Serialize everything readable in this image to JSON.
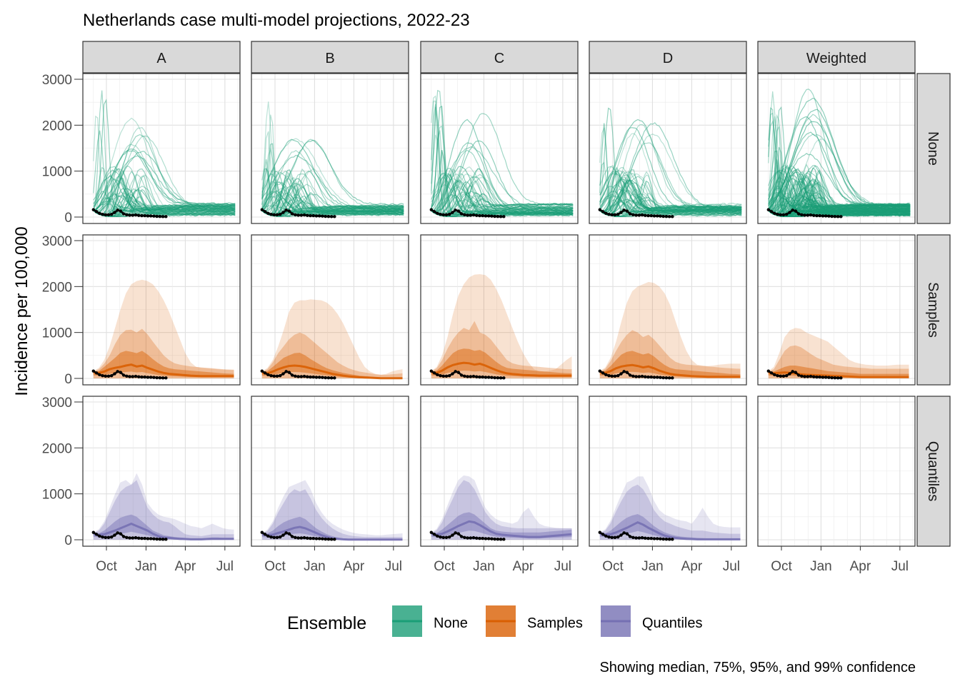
{
  "chart_data": {
    "type": "line",
    "title": "Netherlands case multi-model projections, 2022-23",
    "ylabel": "Incidence per 100,000",
    "xlabel": "",
    "ylim": [
      0,
      3000
    ],
    "yticks": [
      0,
      1000,
      2000,
      3000
    ],
    "xticks": [
      "Oct",
      "Jan",
      "Apr",
      "Jul"
    ],
    "columns": [
      "A",
      "B",
      "C",
      "D",
      "Weighted"
    ],
    "rows": [
      "None",
      "Samples",
      "Quantiles"
    ],
    "legend": {
      "title": "Ensemble",
      "position": "bottom",
      "items": [
        {
          "label": "None",
          "color": "#1b9e77"
        },
        {
          "label": "Samples",
          "color": "#d95f02"
        },
        {
          "label": "Quantiles",
          "color": "#7570b3"
        }
      ]
    },
    "caption": "Showing median, 75%, 95%, and 99% confidence",
    "colors": {
      "None": "#1b9e77",
      "Samples": "#d95f02",
      "Quantiles": "#7570b3",
      "observed": "#000000",
      "strip": "#d9d9d9"
    },
    "x_weeks": [
      0,
      3,
      6,
      9,
      12,
      15,
      18,
      21,
      24,
      27,
      30,
      33,
      36,
      39,
      42,
      45,
      48
    ],
    "observed": {
      "weeks": [
        0,
        1,
        2,
        3,
        4,
        5,
        6,
        7,
        8,
        9,
        10,
        11,
        12,
        13,
        14,
        15,
        16,
        17,
        18,
        19,
        20,
        21,
        22,
        23,
        24
      ],
      "values": [
        160,
        120,
        80,
        60,
        50,
        50,
        60,
        100,
        150,
        130,
        70,
        50,
        40,
        40,
        45,
        35,
        30,
        30,
        25,
        25,
        20,
        15,
        12,
        10,
        10
      ]
    },
    "samples_bands": {
      "A": {
        "q99": [
          160,
          230,
          400,
          700,
          1100,
          1500,
          1850,
          2050,
          2120,
          2150,
          2120,
          2050,
          1900,
          1700,
          1450,
          1150,
          850,
          550,
          350,
          250,
          230,
          220,
          210,
          200,
          190,
          185,
          180
        ],
        "q95": [
          150,
          200,
          320,
          500,
          750,
          950,
          1050,
          1060,
          1000,
          1080,
          960,
          800,
          650,
          500,
          400,
          330,
          300,
          280,
          260,
          250,
          240,
          230,
          220,
          210,
          200,
          195,
          190
        ],
        "q75": [
          140,
          160,
          250,
          350,
          450,
          560,
          600,
          580,
          550,
          600,
          520,
          420,
          330,
          260,
          220,
          200,
          190,
          180,
          170,
          160,
          150,
          140,
          130,
          120,
          110,
          105,
          100
        ],
        "med": [
          130,
          120,
          150,
          200,
          230,
          250,
          280,
          300,
          260,
          280,
          230,
          190,
          150,
          120,
          100,
          90,
          80,
          70,
          60,
          55,
          50,
          50,
          50,
          50,
          50,
          50,
          50
        ]
      },
      "B": {
        "q99": [
          150,
          230,
          400,
          700,
          1050,
          1450,
          1650,
          1700,
          1700,
          1720,
          1710,
          1700,
          1650,
          1550,
          1400,
          1200,
          950,
          700,
          450,
          250,
          150,
          100,
          80,
          100,
          150,
          180,
          200
        ],
        "q95": [
          140,
          200,
          350,
          550,
          700,
          850,
          950,
          1000,
          950,
          850,
          750,
          650,
          550,
          450,
          350,
          280,
          220,
          180,
          150,
          130,
          110,
          90,
          80,
          80,
          90,
          100,
          110
        ],
        "q75": [
          130,
          160,
          250,
          350,
          450,
          500,
          550,
          560,
          500,
          420,
          350,
          280,
          220,
          180,
          150,
          120,
          100,
          80,
          60,
          50,
          40,
          30,
          20,
          20,
          20,
          20,
          20
        ],
        "med": [
          120,
          110,
          150,
          200,
          240,
          270,
          280,
          270,
          250,
          220,
          190,
          160,
          130,
          100,
          80,
          60,
          45,
          35,
          25,
          20,
          15,
          10,
          5,
          5,
          5,
          5,
          5
        ]
      },
      "C": {
        "q99": [
          160,
          250,
          500,
          900,
          1400,
          1800,
          2050,
          2200,
          2260,
          2270,
          2250,
          2150,
          1950,
          1700,
          1400,
          1100,
          800,
          550,
          350,
          200,
          150,
          150,
          170,
          200,
          300,
          400,
          480
        ],
        "q95": [
          150,
          220,
          400,
          650,
          850,
          1000,
          1100,
          1050,
          1250,
          1000,
          950,
          850,
          700,
          550,
          400,
          330,
          300,
          280,
          270,
          260,
          250,
          240,
          230,
          220,
          210,
          200,
          200
        ],
        "q75": [
          140,
          170,
          280,
          420,
          550,
          620,
          650,
          640,
          600,
          620,
          560,
          460,
          360,
          280,
          230,
          210,
          200,
          190,
          180,
          170,
          160,
          150,
          140,
          130,
          120,
          115,
          110
        ],
        "med": [
          130,
          120,
          170,
          240,
          290,
          320,
          340,
          330,
          300,
          320,
          280,
          230,
          180,
          140,
          110,
          95,
          85,
          75,
          70,
          65,
          60,
          60,
          60,
          60,
          60,
          60,
          60
        ]
      },
      "D": {
        "q99": [
          160,
          240,
          450,
          800,
          1250,
          1650,
          1900,
          2000,
          2050,
          2100,
          2080,
          2000,
          1850,
          1600,
          1250,
          900,
          600,
          400,
          300,
          280,
          270,
          280,
          300,
          310,
          320,
          320,
          320
        ],
        "q95": [
          150,
          210,
          380,
          600,
          800,
          950,
          1050,
          1000,
          900,
          950,
          850,
          720,
          580,
          450,
          360,
          320,
          300,
          290,
          280,
          270,
          260,
          250,
          240,
          230,
          220,
          215,
          210
        ],
        "q75": [
          140,
          170,
          270,
          400,
          520,
          580,
          600,
          560,
          520,
          550,
          480,
          380,
          290,
          230,
          200,
          190,
          180,
          170,
          160,
          150,
          140,
          130,
          120,
          110,
          100,
          95,
          90
        ],
        "med": [
          130,
          120,
          160,
          220,
          260,
          280,
          290,
          270,
          240,
          260,
          220,
          170,
          130,
          100,
          80,
          70,
          60,
          50,
          45,
          40,
          35,
          35,
          35,
          35,
          35,
          35,
          35
        ]
      },
      "Weighted": {
        "q99": [
          160,
          250,
          550,
          900,
          1050,
          1100,
          1080,
          1000,
          950,
          900,
          850,
          800,
          700,
          600,
          500,
          400,
          350,
          320,
          300,
          290,
          280,
          280,
          280,
          290,
          300,
          300,
          300
        ],
        "q95": [
          150,
          200,
          400,
          600,
          700,
          720,
          680,
          600,
          520,
          450,
          400,
          350,
          300,
          280,
          260,
          250,
          240,
          230,
          220,
          210,
          210,
          210,
          210,
          210,
          210,
          210,
          210
        ],
        "q75": [
          140,
          150,
          200,
          250,
          280,
          280,
          260,
          240,
          220,
          200,
          180,
          160,
          150,
          140,
          130,
          120,
          110,
          100,
          100,
          100,
          100,
          100,
          100,
          100,
          100,
          100,
          100
        ],
        "med": [
          130,
          110,
          120,
          130,
          120,
          110,
          90,
          80,
          75,
          70,
          65,
          60,
          55,
          50,
          45,
          40,
          35,
          30,
          30,
          30,
          30,
          30,
          30,
          30,
          30,
          30,
          30
        ]
      }
    },
    "quantile_bands": {
      "A": {
        "q99": [
          160,
          230,
          400,
          700,
          1000,
          1250,
          1300,
          1200,
          1450,
          1200,
          800,
          650,
          550,
          500,
          480,
          450,
          400,
          350,
          300,
          280,
          250,
          300,
          350,
          300,
          250,
          230,
          220
        ],
        "q95": [
          150,
          200,
          350,
          600,
          850,
          1050,
          1150,
          1200,
          1300,
          1000,
          700,
          550,
          450,
          400,
          380,
          300,
          200,
          120,
          100,
          90,
          80,
          100,
          120,
          120,
          120,
          120,
          120
        ],
        "q75": [
          140,
          140,
          200,
          300,
          400,
          480,
          520,
          550,
          500,
          400,
          300,
          200,
          150,
          100,
          80,
          60,
          50,
          40,
          30,
          30,
          30,
          40,
          50,
          50,
          40,
          40,
          40
        ],
        "med": [
          130,
          110,
          120,
          160,
          200,
          250,
          300,
          350,
          300,
          250,
          200,
          130,
          80,
          50,
          40,
          30,
          20,
          15,
          10,
          10,
          10,
          15,
          20,
          20,
          20,
          20,
          20
        ]
      },
      "B": {
        "q99": [
          150,
          220,
          400,
          700,
          950,
          1150,
          1200,
          1250,
          1300,
          1100,
          800,
          600,
          450,
          350,
          280,
          220,
          180,
          150,
          130,
          120,
          110,
          100,
          100,
          110,
          120,
          130,
          140
        ],
        "q95": [
          140,
          190,
          350,
          600,
          800,
          1000,
          1100,
          1050,
          1100,
          900,
          650,
          480,
          350,
          250,
          180,
          130,
          100,
          80,
          70,
          60,
          60,
          60,
          60,
          60,
          60,
          60,
          60
        ],
        "q75": [
          130,
          140,
          200,
          300,
          380,
          430,
          470,
          500,
          450,
          350,
          250,
          180,
          120,
          80,
          50,
          30,
          20,
          15,
          10,
          10,
          10,
          10,
          10,
          10,
          10,
          10,
          10
        ],
        "med": [
          120,
          100,
          110,
          150,
          180,
          220,
          260,
          280,
          250,
          200,
          150,
          100,
          60,
          30,
          20,
          10,
          5,
          5,
          5,
          5,
          5,
          5,
          5,
          5,
          5,
          5,
          5
        ]
      },
      "C": {
        "q99": [
          160,
          240,
          450,
          750,
          1050,
          1300,
          1400,
          1380,
          1300,
          1000,
          700,
          550,
          450,
          400,
          380,
          350,
          400,
          600,
          700,
          500,
          350,
          300,
          280,
          260,
          250,
          250,
          250
        ],
        "q95": [
          150,
          210,
          380,
          650,
          900,
          1150,
          1300,
          1250,
          1100,
          850,
          600,
          450,
          350,
          300,
          280,
          260,
          250,
          250,
          250,
          250,
          250,
          250,
          250,
          250,
          250,
          250,
          250
        ],
        "q75": [
          140,
          150,
          220,
          320,
          420,
          520,
          580,
          600,
          550,
          450,
          350,
          250,
          200,
          180,
          170,
          160,
          160,
          160,
          160,
          160,
          160,
          170,
          180,
          190,
          200,
          210,
          220
        ],
        "med": [
          130,
          110,
          130,
          180,
          240,
          300,
          350,
          400,
          380,
          320,
          250,
          180,
          130,
          110,
          100,
          90,
          80,
          70,
          60,
          60,
          60,
          70,
          80,
          90,
          100,
          110,
          120
        ]
      },
      "D": {
        "q99": [
          160,
          230,
          420,
          720,
          1000,
          1250,
          1300,
          1380,
          1380,
          1150,
          850,
          650,
          550,
          500,
          450,
          420,
          400,
          350,
          500,
          700,
          500,
          350,
          300,
          280,
          270,
          270,
          270
        ],
        "q95": [
          150,
          200,
          360,
          620,
          850,
          1050,
          1150,
          1200,
          1100,
          900,
          650,
          500,
          400,
          350,
          300,
          260,
          230,
          200,
          200,
          200,
          180,
          160,
          150,
          140,
          130,
          130,
          130
        ],
        "q75": [
          140,
          140,
          200,
          300,
          400,
          480,
          530,
          560,
          500,
          400,
          300,
          220,
          160,
          120,
          90,
          70,
          60,
          50,
          40,
          35,
          30,
          30,
          30,
          30,
          30,
          30,
          30
        ],
        "med": [
          130,
          110,
          120,
          160,
          210,
          260,
          320,
          380,
          330,
          260,
          200,
          140,
          90,
          60,
          40,
          30,
          20,
          15,
          10,
          10,
          10,
          10,
          10,
          10,
          10,
          10,
          10
        ]
      }
    }
  }
}
